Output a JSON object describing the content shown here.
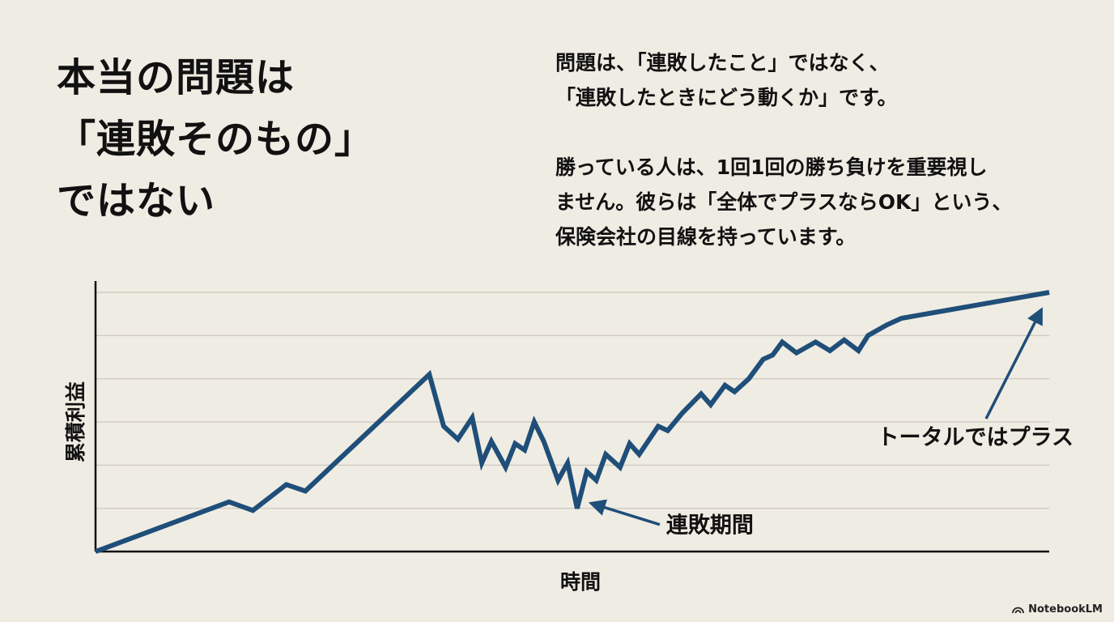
{
  "slide": {
    "title_lines": [
      "本当の問題は",
      "「連敗そのもの」",
      "ではない"
    ],
    "paragraphs": [
      [
        "問題は、「連敗したこと」ではなく、",
        "「連敗したときにどう動くか」です。"
      ],
      [
        "勝っている人は、1回1回の勝ち負けを重要視し",
        "ません。彼らは「全体でプラスならOK」という、",
        "保険会社の目線を持っています。"
      ]
    ],
    "brand": "NotebookLM"
  },
  "chart_data": {
    "type": "line",
    "xlabel": "時間",
    "ylabel": "累積利益",
    "grid": true,
    "line_color": "#1f4e79",
    "x": [
      0,
      14,
      16.5,
      20,
      22,
      35,
      36.5,
      38,
      39.5,
      40.5,
      41.5,
      43,
      44,
      45,
      46,
      47,
      48.5,
      49.5,
      50.5,
      51.5,
      52.5,
      53.5,
      55,
      56,
      57,
      59,
      60,
      61.5,
      63.5,
      64.5,
      66,
      67,
      68.5,
      70,
      71,
      72,
      73.5,
      75.5,
      77,
      78.5,
      80,
      81,
      83,
      84.5,
      100
    ],
    "y": [
      0,
      11.5,
      9.5,
      15.5,
      14,
      41,
      29,
      26,
      31,
      20.5,
      25.5,
      19.5,
      25,
      23.5,
      30,
      25.5,
      16.5,
      20.5,
      10,
      18.5,
      16.5,
      22.5,
      19.5,
      25,
      22.5,
      29,
      28,
      32,
      36.5,
      34,
      38.5,
      37,
      40,
      44.5,
      45.5,
      48.5,
      46,
      48.5,
      46.5,
      49,
      46.5,
      50,
      52.5,
      54,
      60
    ],
    "ylim": [
      0,
      60
    ],
    "xlim": [
      0,
      100
    ],
    "annotations": [
      {
        "text": "連敗期間",
        "x": 50.5,
        "y": 10
      },
      {
        "text": "トータルではプラス",
        "x": 100,
        "y": 60
      }
    ]
  }
}
